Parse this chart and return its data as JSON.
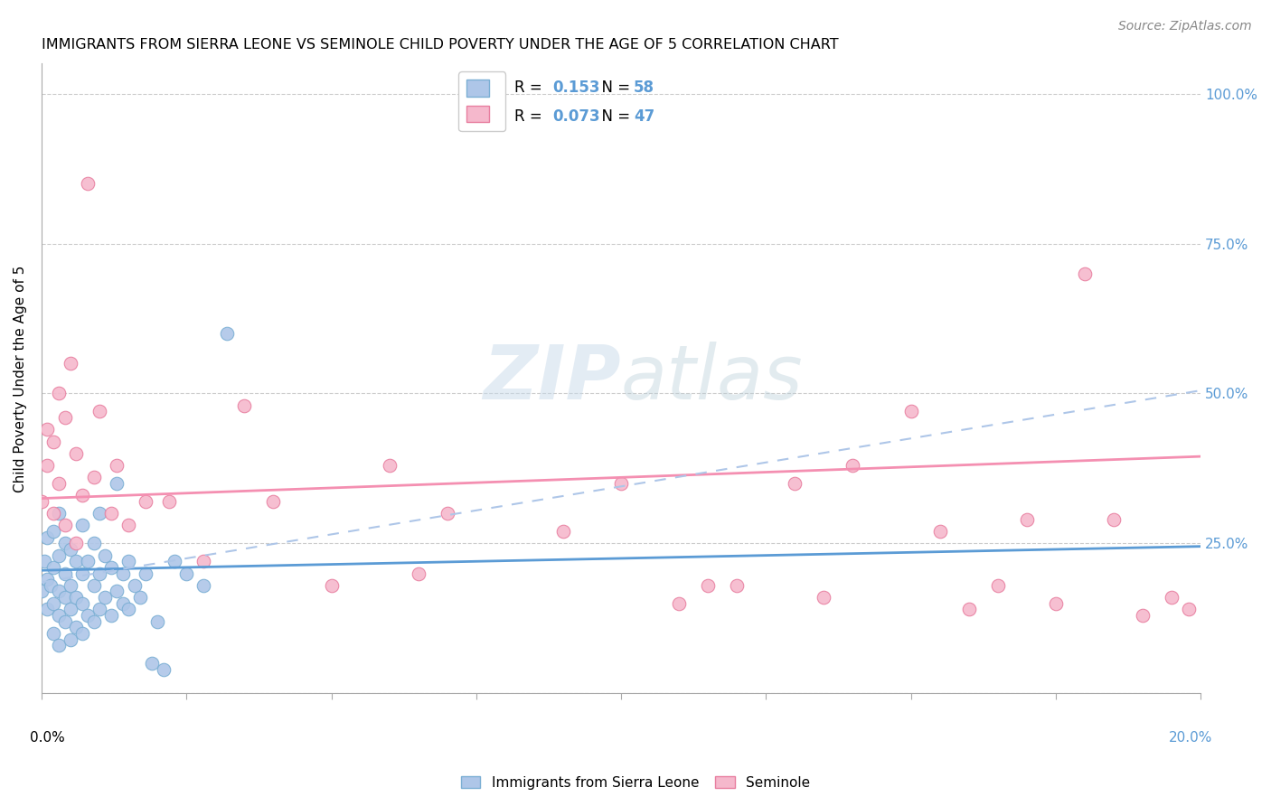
{
  "title": "IMMIGRANTS FROM SIERRA LEONE VS SEMINOLE CHILD POVERTY UNDER THE AGE OF 5 CORRELATION CHART",
  "source": "Source: ZipAtlas.com",
  "ylabel": "Child Poverty Under the Age of 5",
  "yticks": [
    0.0,
    0.25,
    0.5,
    0.75,
    1.0
  ],
  "ytick_labels": [
    "",
    "25.0%",
    "50.0%",
    "75.0%",
    "100.0%"
  ],
  "xlim": [
    0.0,
    0.2
  ],
  "ylim": [
    0.0,
    1.05
  ],
  "blue_color": "#aec6e8",
  "blue_edge": "#7bafd4",
  "pink_color": "#f5b8cc",
  "pink_edge": "#e87fa0",
  "blue_line_color": "#5b9bd5",
  "pink_line_color": "#f48fb1",
  "dash_line_color": "#aec6e8",
  "watermark_color": "#dce8f0",
  "blue_scatter_x": [
    0.0,
    0.0005,
    0.001,
    0.001,
    0.001,
    0.0015,
    0.002,
    0.002,
    0.002,
    0.002,
    0.003,
    0.003,
    0.003,
    0.003,
    0.003,
    0.004,
    0.004,
    0.004,
    0.004,
    0.005,
    0.005,
    0.005,
    0.005,
    0.006,
    0.006,
    0.006,
    0.007,
    0.007,
    0.007,
    0.007,
    0.008,
    0.008,
    0.009,
    0.009,
    0.009,
    0.01,
    0.01,
    0.01,
    0.011,
    0.011,
    0.012,
    0.012,
    0.013,
    0.013,
    0.014,
    0.014,
    0.015,
    0.015,
    0.016,
    0.017,
    0.018,
    0.019,
    0.02,
    0.021,
    0.023,
    0.025,
    0.028,
    0.032
  ],
  "blue_scatter_y": [
    0.17,
    0.22,
    0.14,
    0.19,
    0.26,
    0.18,
    0.1,
    0.15,
    0.21,
    0.27,
    0.08,
    0.13,
    0.17,
    0.23,
    0.3,
    0.12,
    0.16,
    0.2,
    0.25,
    0.09,
    0.14,
    0.18,
    0.24,
    0.11,
    0.16,
    0.22,
    0.1,
    0.15,
    0.2,
    0.28,
    0.13,
    0.22,
    0.12,
    0.18,
    0.25,
    0.14,
    0.2,
    0.3,
    0.16,
    0.23,
    0.13,
    0.21,
    0.17,
    0.35,
    0.15,
    0.2,
    0.14,
    0.22,
    0.18,
    0.16,
    0.2,
    0.05,
    0.12,
    0.04,
    0.22,
    0.2,
    0.18,
    0.6
  ],
  "pink_scatter_x": [
    0.0,
    0.001,
    0.001,
    0.002,
    0.002,
    0.003,
    0.003,
    0.004,
    0.004,
    0.005,
    0.006,
    0.006,
    0.007,
    0.008,
    0.009,
    0.01,
    0.012,
    0.013,
    0.015,
    0.018,
    0.022,
    0.028,
    0.035,
    0.04,
    0.05,
    0.06,
    0.065,
    0.07,
    0.09,
    0.1,
    0.11,
    0.115,
    0.12,
    0.13,
    0.135,
    0.14,
    0.15,
    0.155,
    0.16,
    0.165,
    0.17,
    0.175,
    0.18,
    0.185,
    0.19,
    0.195,
    0.198
  ],
  "pink_scatter_y": [
    0.32,
    0.38,
    0.44,
    0.3,
    0.42,
    0.35,
    0.5,
    0.28,
    0.46,
    0.55,
    0.25,
    0.4,
    0.33,
    0.85,
    0.36,
    0.47,
    0.3,
    0.38,
    0.28,
    0.32,
    0.32,
    0.22,
    0.48,
    0.32,
    0.18,
    0.38,
    0.2,
    0.3,
    0.27,
    0.35,
    0.15,
    0.18,
    0.18,
    0.35,
    0.16,
    0.38,
    0.47,
    0.27,
    0.14,
    0.18,
    0.29,
    0.15,
    0.7,
    0.29,
    0.13,
    0.16,
    0.14
  ],
  "blue_line_x0": 0.0,
  "blue_line_y0": 0.205,
  "blue_line_x1": 0.2,
  "blue_line_y1": 0.245,
  "pink_line_x0": 0.0,
  "pink_line_y0": 0.325,
  "pink_line_x1": 0.2,
  "pink_line_y1": 0.395,
  "dash_line_x0": 0.0,
  "dash_line_y0": 0.185,
  "dash_line_x1": 0.2,
  "dash_line_y1": 0.505,
  "legend1_label": "R =  0.153   N = 58",
  "legend2_label": "R =  0.073   N = 47",
  "legend_r1": "0.153",
  "legend_n1": "58",
  "legend_r2": "0.073",
  "legend_n2": "47",
  "bottom_legend1": "Immigrants from Sierra Leone",
  "bottom_legend2": "Seminole"
}
